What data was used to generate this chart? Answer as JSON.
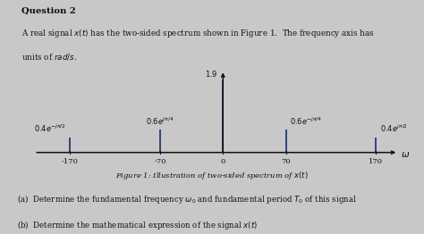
{
  "title_bold": "Question 2",
  "description_line1": "A real signal $x(t)$ has the two-sided spectrum shown in Figure 1.  The frequency axis has",
  "description_line2": "units of $rad/s$.",
  "figure_caption": "Figure 1: Illustration of two-sided spectrum of $x(t)$",
  "part_a": "(a)  Determine the fundamental frequency $\\omega_0$ and fundamental period $T_0$ of this signal",
  "part_b": "(b)  Determine the mathematical expression of the signal $x(t)$",
  "frequencies": [
    -170,
    -70,
    0,
    70,
    170
  ],
  "amplitudes": [
    0.4,
    0.6,
    1.9,
    0.6,
    0.4
  ],
  "stem_labels": [
    "$0.4e^{-j\\pi/2}$",
    "$0.6e^{j\\pi/4}$",
    "$1.9$",
    "$0.6e^{-j\\pi/4}$",
    "$0.4e^{j\\pi/2}$"
  ],
  "background_color": "#c8c8c8",
  "text_color": "#111111",
  "stem_color": "#1e3a7a",
  "axis_color": "#111111",
  "xlim": [
    -215,
    200
  ],
  "ylim": [
    -0.3,
    2.3
  ],
  "omega_label": "$\\omega$",
  "tick_labels": [
    "-170",
    "-70",
    "0",
    "70",
    "170"
  ]
}
